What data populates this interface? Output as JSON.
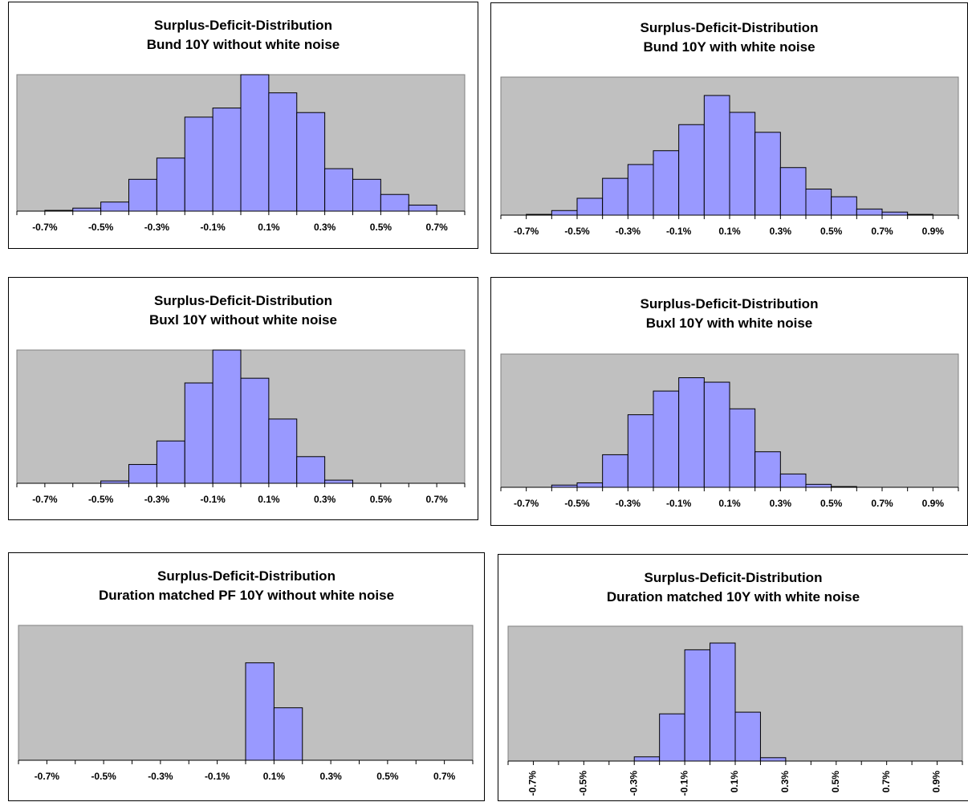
{
  "colors": {
    "plot_area": "#c0c0c0",
    "bar_fill": "#9999ff",
    "bar_stroke": "#000000",
    "axis": "#000000"
  },
  "chart_data": [
    {
      "type": "bar",
      "title": "Surplus-Deficit-Distribution",
      "subtitle": "Bund 10Y without white noise",
      "categories": [
        "-0.8%",
        "-0.7%",
        "-0.6%",
        "-0.5%",
        "-0.4%",
        "-0.3%",
        "-0.2%",
        "-0.1%",
        "0.0%",
        "0.1%",
        "0.2%",
        "0.3%",
        "0.4%",
        "0.5%",
        "0.6%",
        "0.7%"
      ],
      "tick_labels": [
        "-0.7%",
        "-0.5%",
        "-0.3%",
        "-0.1%",
        "0.1%",
        "0.3%",
        "0.5%",
        "0.7%"
      ],
      "values": [
        0,
        0.5,
        2,
        6,
        21,
        35,
        62,
        68,
        90,
        78,
        65,
        28,
        21,
        11,
        4,
        0
      ],
      "ylim": [
        0,
        90
      ],
      "tick_label_rotation": 0,
      "xlabel": "",
      "ylabel": "",
      "grid": false
    },
    {
      "type": "bar",
      "title": "Surplus-Deficit-Distribution",
      "subtitle": "Bund 10Y with white noise",
      "categories": [
        "-0.8%",
        "-0.7%",
        "-0.6%",
        "-0.5%",
        "-0.4%",
        "-0.3%",
        "-0.2%",
        "-0.1%",
        "0.0%",
        "0.1%",
        "0.2%",
        "0.3%",
        "0.4%",
        "0.5%",
        "0.6%",
        "0.7%",
        "0.8%",
        "0.9%"
      ],
      "tick_labels": [
        "-0.7%",
        "-0.5%",
        "-0.3%",
        "-0.1%",
        "0.1%",
        "0.3%",
        "0.5%",
        "0.7%",
        "0.9%"
      ],
      "values": [
        0,
        0.5,
        3,
        11,
        24,
        33,
        42,
        59,
        78,
        67,
        54,
        31,
        17,
        12,
        4,
        2,
        0.5,
        0
      ],
      "ylim": [
        0,
        90
      ],
      "tick_label_rotation": 0,
      "xlabel": "",
      "ylabel": "",
      "grid": false
    },
    {
      "type": "bar",
      "title": "Surplus-Deficit-Distribution",
      "subtitle": "Buxl 10Y without white noise",
      "categories": [
        "-0.8%",
        "-0.7%",
        "-0.6%",
        "-0.5%",
        "-0.4%",
        "-0.3%",
        "-0.2%",
        "-0.1%",
        "0.0%",
        "0.1%",
        "0.2%",
        "0.3%",
        "0.4%",
        "0.5%",
        "0.6%",
        "0.7%"
      ],
      "tick_labels": [
        "-0.7%",
        "-0.5%",
        "-0.3%",
        "-0.1%",
        "0.1%",
        "0.3%",
        "0.5%",
        "0.7%"
      ],
      "values": [
        0,
        0,
        0,
        1.5,
        12,
        27,
        64,
        85,
        67,
        41,
        17,
        2,
        0,
        0,
        0,
        0
      ],
      "ylim": [
        0,
        85
      ],
      "tick_label_rotation": 0,
      "xlabel": "",
      "ylabel": "",
      "grid": false
    },
    {
      "type": "bar",
      "title": "Surplus-Deficit-Distribution",
      "subtitle": "Buxl 10Y with white noise",
      "categories": [
        "-0.8%",
        "-0.7%",
        "-0.6%",
        "-0.5%",
        "-0.4%",
        "-0.3%",
        "-0.2%",
        "-0.1%",
        "0.0%",
        "0.1%",
        "0.2%",
        "0.3%",
        "0.4%",
        "0.5%",
        "0.6%",
        "0.7%",
        "0.8%",
        "0.9%"
      ],
      "tick_labels": [
        "-0.7%",
        "-0.5%",
        "-0.3%",
        "-0.1%",
        "0.1%",
        "0.3%",
        "0.5%",
        "0.7%",
        "0.9%"
      ],
      "values": [
        0,
        0,
        1.5,
        3,
        22,
        49,
        65,
        74,
        71,
        53,
        24,
        9,
        2,
        0.5,
        0,
        0,
        0,
        0
      ],
      "ylim": [
        0,
        90
      ],
      "tick_label_rotation": 0,
      "xlabel": "",
      "ylabel": "",
      "grid": false
    },
    {
      "type": "bar",
      "title": "Surplus-Deficit-Distribution",
      "subtitle": "Duration matched PF 10Y without white noise",
      "categories": [
        "-0.8%",
        "-0.7%",
        "-0.6%",
        "-0.5%",
        "-0.4%",
        "-0.3%",
        "-0.2%",
        "-0.1%",
        "0.0%",
        "0.1%",
        "0.2%",
        "0.3%",
        "0.4%",
        "0.5%",
        "0.6%",
        "0.7%"
      ],
      "tick_labels": [
        "-0.7%",
        "-0.5%",
        "-0.3%",
        "-0.1%",
        "0.1%",
        "0.3%",
        "0.5%",
        "0.7%"
      ],
      "values": [
        0,
        0,
        0,
        0,
        0,
        0,
        0,
        0,
        65,
        35,
        0,
        0,
        0,
        0,
        0,
        0
      ],
      "ylim": [
        0,
        90
      ],
      "tick_label_rotation": 0,
      "xlabel": "",
      "ylabel": "",
      "grid": false
    },
    {
      "type": "bar",
      "title": "Surplus-Deficit-Distribution",
      "subtitle": "Duration matched 10Y with white noise",
      "categories": [
        "-0.8%",
        "-0.7%",
        "-0.6%",
        "-0.5%",
        "-0.4%",
        "-0.3%",
        "-0.2%",
        "-0.1%",
        "0.0%",
        "0.1%",
        "0.2%",
        "0.3%",
        "0.4%",
        "0.5%",
        "0.6%",
        "0.7%",
        "0.8%",
        "0.9%"
      ],
      "tick_labels": [
        "-0.7%",
        "-0.5%",
        "-0.3%",
        "-0.1%",
        "0.1%",
        "0.3%",
        "0.5%",
        "0.7%",
        "0.9%"
      ],
      "values": [
        0,
        0,
        0,
        0,
        0,
        2.5,
        28,
        66,
        70,
        29,
        2,
        0,
        0,
        0,
        0,
        0,
        0,
        0
      ],
      "ylim": [
        0,
        80
      ],
      "tick_label_rotation": -90,
      "xlabel": "",
      "ylabel": "",
      "grid": false
    }
  ]
}
